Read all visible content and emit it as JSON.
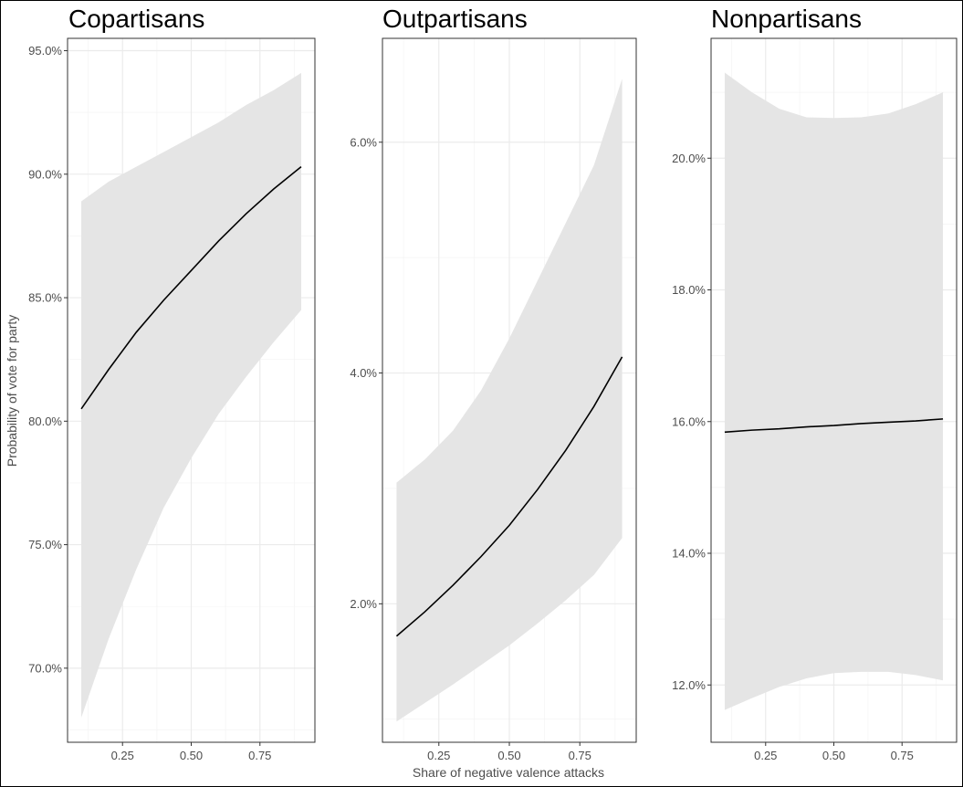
{
  "chart_data": [
    {
      "type": "line",
      "title": "Copartisans",
      "xlim": [
        0.05,
        0.95
      ],
      "ylim": [
        0.67,
        0.955
      ],
      "xticks": [
        0.25,
        0.5,
        0.75
      ],
      "xtick_labels": [
        "0.25",
        "0.50",
        "0.75"
      ],
      "yticks": [
        0.7,
        0.75,
        0.8,
        0.85,
        0.9,
        0.95
      ],
      "ytick_labels": [
        "70.0%",
        "75.0%",
        "80.0%",
        "85.0%",
        "90.0%",
        "95.0%"
      ],
      "x": [
        0.1,
        0.2,
        0.3,
        0.4,
        0.5,
        0.6,
        0.7,
        0.8,
        0.9
      ],
      "series": [
        {
          "y": [
            0.805,
            0.821,
            0.836,
            0.849,
            0.861,
            0.873,
            0.884,
            0.894,
            0.903
          ],
          "lower": [
            0.68,
            0.712,
            0.74,
            0.765,
            0.785,
            0.803,
            0.818,
            0.832,
            0.845
          ],
          "upper": [
            0.889,
            0.897,
            0.903,
            0.909,
            0.915,
            0.921,
            0.928,
            0.934,
            0.941
          ]
        }
      ],
      "grid": true
    },
    {
      "type": "line",
      "title": "Outpartisans",
      "xlim": [
        0.05,
        0.95
      ],
      "ylim": [
        0.008,
        0.069
      ],
      "xticks": [
        0.25,
        0.5,
        0.75
      ],
      "xtick_labels": [
        "0.25",
        "0.50",
        "0.75"
      ],
      "yticks": [
        0.02,
        0.04,
        0.06
      ],
      "ytick_labels": [
        "2.0%",
        "4.0%",
        "6.0%"
      ],
      "x": [
        0.1,
        0.2,
        0.3,
        0.4,
        0.5,
        0.6,
        0.7,
        0.8,
        0.9
      ],
      "series": [
        {
          "y": [
            0.0172,
            0.0193,
            0.0216,
            0.0241,
            0.0268,
            0.0299,
            0.0333,
            0.0371,
            0.0414
          ],
          "lower": [
            0.0098,
            0.0114,
            0.013,
            0.0147,
            0.0164,
            0.0183,
            0.0203,
            0.0225,
            0.0257
          ],
          "upper": [
            0.0305,
            0.0325,
            0.035,
            0.0385,
            0.043,
            0.048,
            0.053,
            0.058,
            0.0655
          ]
        }
      ],
      "grid": true
    },
    {
      "type": "line",
      "title": "Nonpartisans",
      "xlim": [
        0.05,
        0.95
      ],
      "ylim": [
        0.1113,
        0.2182
      ],
      "xticks": [
        0.25,
        0.5,
        0.75
      ],
      "xtick_labels": [
        "0.25",
        "0.50",
        "0.75"
      ],
      "yticks": [
        0.12,
        0.14,
        0.16,
        0.18,
        0.2
      ],
      "ytick_labels": [
        "12.0%",
        "14.0%",
        "16.0%",
        "18.0%",
        "20.0%"
      ],
      "x": [
        0.1,
        0.2,
        0.3,
        0.4,
        0.5,
        0.6,
        0.7,
        0.8,
        0.9
      ],
      "series": [
        {
          "y": [
            0.1584,
            0.1587,
            0.1589,
            0.1592,
            0.1594,
            0.1597,
            0.1599,
            0.1601,
            0.1604
          ],
          "lower": [
            0.1162,
            0.118,
            0.1197,
            0.121,
            0.1218,
            0.122,
            0.122,
            0.1215,
            0.1207
          ],
          "upper": [
            0.213,
            0.21,
            0.2075,
            0.2062,
            0.2061,
            0.2062,
            0.2068,
            0.2082,
            0.21
          ]
        }
      ],
      "grid": true
    }
  ],
  "xlabel": "Share of negative valence attacks",
  "ylabel": "Probability of vote for party",
  "colors": {
    "line": "#000000",
    "ribbon": "#e5e5e5",
    "grid_major": "#ebebeb",
    "grid_minor": "#f4f4f4",
    "panel_border": "#333333",
    "tick_text": "#4d4d4d"
  }
}
